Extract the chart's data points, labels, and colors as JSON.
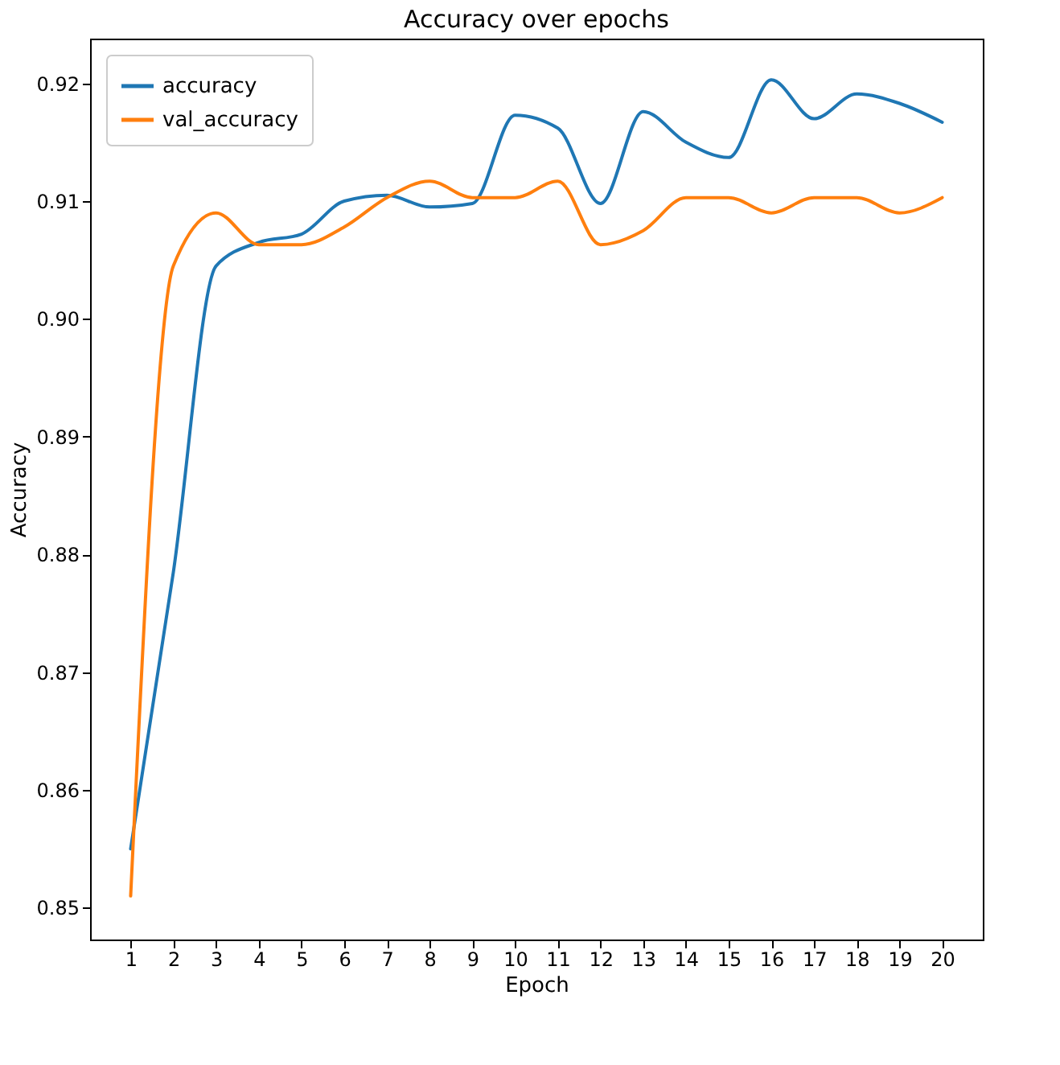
{
  "chart_data": {
    "type": "line",
    "title": "Accuracy over epochs",
    "xlabel": "Epoch",
    "ylabel": "Accuracy",
    "x": [
      1,
      2,
      3,
      4,
      5,
      6,
      7,
      8,
      9,
      10,
      11,
      12,
      13,
      14,
      15,
      16,
      17,
      18,
      19,
      20
    ],
    "series": [
      {
        "name": "accuracy",
        "color": "#1f77b4",
        "values": [
          0.855,
          0.8785,
          0.9045,
          0.9065,
          0.9072,
          0.91,
          0.9105,
          0.9095,
          0.9098,
          0.9173,
          0.9162,
          0.9098,
          0.9176,
          0.915,
          0.9137,
          0.9203,
          0.917,
          0.9191,
          0.9183,
          0.9167
        ]
      },
      {
        "name": "val_accuracy",
        "color": "#ff7f0e",
        "values": [
          0.851,
          0.9045,
          0.909,
          0.9063,
          0.9063,
          0.9078,
          0.9103,
          0.9117,
          0.9103,
          0.9103,
          0.9117,
          0.9063,
          0.9075,
          0.9103,
          0.9103,
          0.909,
          0.9103,
          0.9103,
          0.909,
          0.9103
        ]
      }
    ],
    "xlim": [
      0.05,
      20.95
    ],
    "xticks": [
      1,
      2,
      3,
      4,
      5,
      6,
      7,
      8,
      9,
      10,
      11,
      12,
      13,
      14,
      15,
      16,
      17,
      18,
      19,
      20
    ],
    "ylim": [
      0.8473,
      0.9238
    ],
    "yticks": [
      0.85,
      0.86,
      0.87,
      0.88,
      0.89,
      {
        "value": 0.9,
        "label": "0.90"
      },
      0.91,
      0.92
    ],
    "grid": false,
    "legend": "top left",
    "line_style": "solid",
    "marker": "none"
  }
}
